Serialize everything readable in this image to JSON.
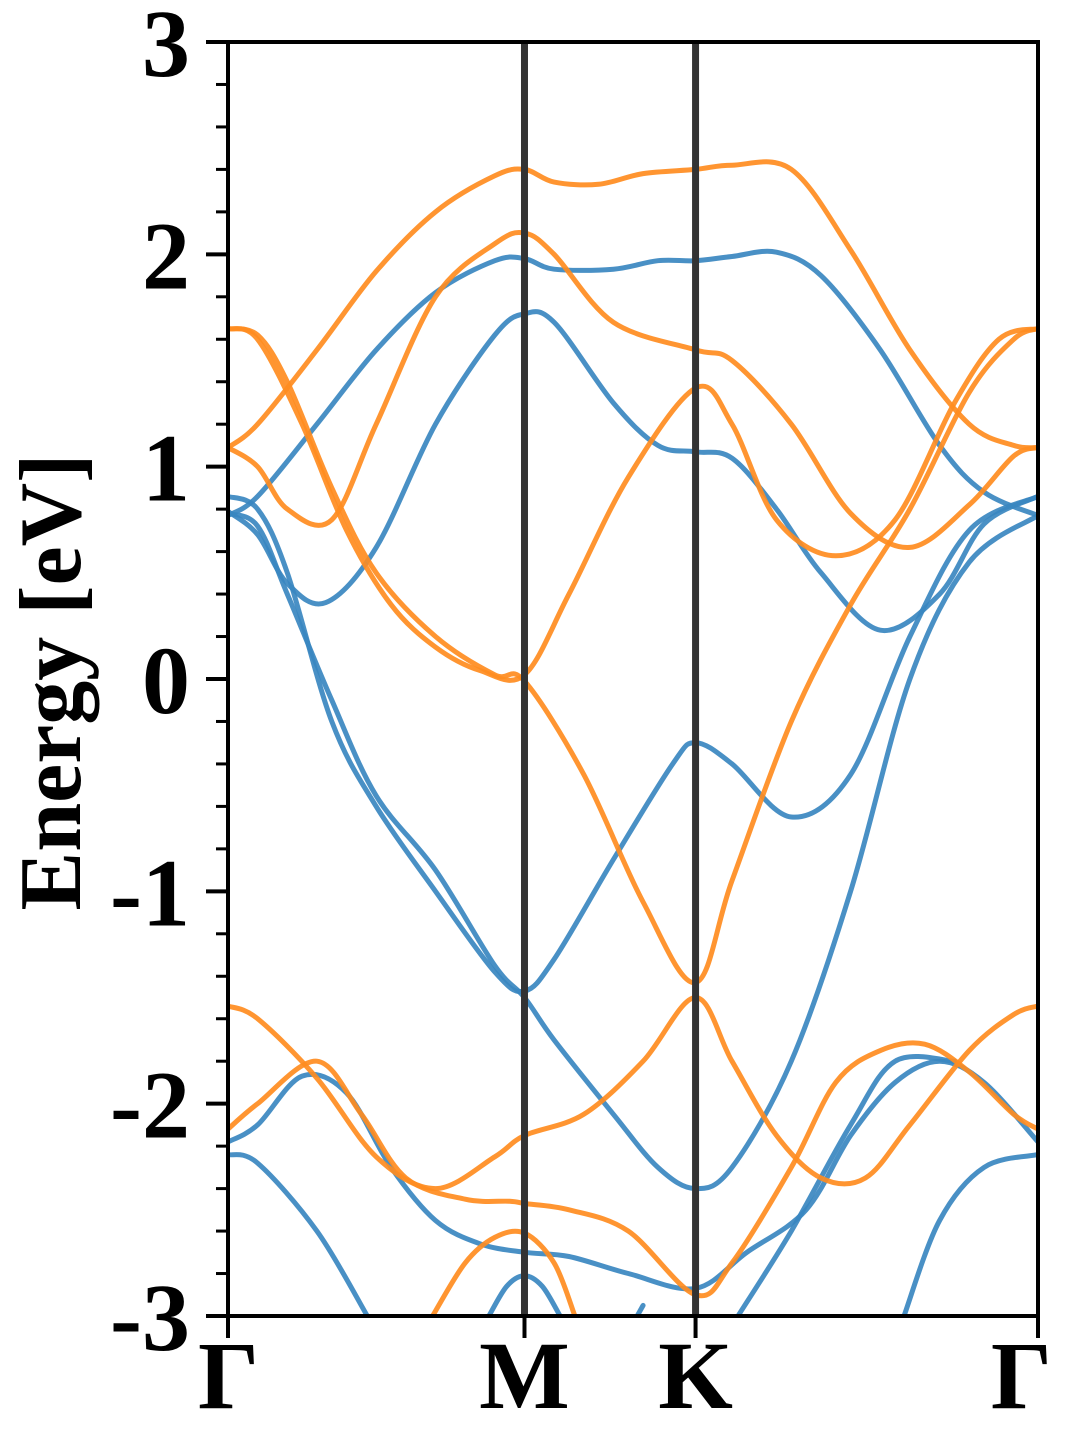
{
  "chart_data": {
    "type": "line",
    "title": "",
    "xlabel": "",
    "ylabel": "Energy [eV]",
    "ylim": [
      -3,
      3
    ],
    "y_ticks": [
      "3",
      "2",
      "1",
      "0",
      "-1",
      "-2",
      "-3"
    ],
    "y_tick_values": [
      3,
      2,
      1,
      0,
      -1,
      -2,
      -3
    ],
    "x_ticks": [
      "Γ",
      "M",
      "K",
      "Γ"
    ],
    "x_tick_positions": [
      0,
      1,
      1.577,
      2.732
    ],
    "k_path_vertical_lines": [
      1,
      1.577
    ],
    "grid": false,
    "colors": {
      "blue": "#3a87c0",
      "orange": "#ff8c1f",
      "frame": "#000000",
      "kline": "#333333"
    },
    "series": [
      {
        "color": "#3a87c0",
        "x": [
          0,
          0.1,
          0.3,
          0.5,
          0.7,
          0.9,
          1.0,
          1.1,
          1.3,
          1.45,
          1.577,
          1.7,
          1.85,
          2.0,
          2.2,
          2.4,
          2.55,
          2.732
        ],
        "y": [
          0.77,
          0.86,
          1.2,
          1.55,
          1.82,
          1.97,
          1.98,
          1.93,
          1.93,
          1.97,
          1.97,
          1.99,
          2.01,
          1.9,
          1.55,
          1.1,
          0.88,
          0.77
        ]
      },
      {
        "color": "#3a87c0",
        "x": [
          0,
          0.1,
          0.2,
          0.33,
          0.5,
          0.7,
          0.9,
          1.0,
          1.1,
          1.3,
          1.45,
          1.577,
          1.7,
          1.85,
          2.0,
          2.2,
          2.4,
          2.55,
          2.732
        ],
        "y": [
          0.79,
          0.68,
          0.45,
          0.36,
          0.62,
          1.2,
          1.62,
          1.72,
          1.68,
          1.3,
          1.1,
          1.07,
          1.04,
          0.8,
          0.5,
          0.23,
          0.4,
          0.73,
          0.86
        ]
      },
      {
        "color": "#3a87c0",
        "x": [
          0,
          0.1,
          0.2,
          0.35,
          0.5,
          0.7,
          0.9,
          1.0,
          1.1,
          1.3,
          1.5,
          1.577,
          1.7,
          1.9,
          2.1,
          2.3,
          2.5,
          2.732
        ],
        "y": [
          0.86,
          0.8,
          0.5,
          -0.2,
          -0.6,
          -1.0,
          -1.38,
          -1.47,
          -1.32,
          -0.85,
          -0.4,
          -0.3,
          -0.4,
          -0.65,
          -0.45,
          0.2,
          0.7,
          0.86
        ]
      },
      {
        "color": "#3a87c0",
        "x": [
          0,
          0.1,
          0.2,
          0.35,
          0.5,
          0.7,
          0.9,
          1.0,
          1.1,
          1.3,
          1.45,
          1.577,
          1.7,
          1.9,
          2.1,
          2.3,
          2.5,
          2.732
        ],
        "y": [
          0.78,
          0.72,
          0.4,
          -0.1,
          -0.55,
          -0.9,
          -1.35,
          -1.5,
          -1.7,
          -2.05,
          -2.3,
          -2.4,
          -2.3,
          -1.8,
          -1.0,
          0.0,
          0.55,
          0.77
        ]
      },
      {
        "color": "#3a87c0",
        "x": [
          0,
          0.1,
          0.25,
          0.4,
          0.55,
          0.7,
          0.85,
          1.0,
          1.15,
          1.35,
          1.577,
          1.75,
          1.95,
          2.1,
          2.25,
          2.4,
          2.55,
          2.732
        ],
        "y": [
          -2.18,
          -2.1,
          -1.87,
          -1.95,
          -2.3,
          -2.55,
          -2.66,
          -2.7,
          -2.72,
          -2.8,
          -2.87,
          -2.7,
          -2.5,
          -2.15,
          -1.9,
          -1.8,
          -1.9,
          -2.18
        ]
      },
      {
        "color": "#3a87c0",
        "x": [
          0,
          0.1,
          0.3,
          0.47
        ],
        "y": [
          -2.24,
          -2.28,
          -2.6,
          -3.0
        ]
      },
      {
        "color": "#3a87c0",
        "x": [
          0.88,
          0.94,
          1.0,
          1.06,
          1.12
        ],
        "y": [
          -3.0,
          -2.86,
          -2.81,
          -2.86,
          -3.0
        ]
      },
      {
        "color": "#3a87c0",
        "x": [
          1.38,
          1.4
        ],
        "y": [
          -3.0,
          -2.95
        ]
      },
      {
        "color": "#3a87c0",
        "x": [
          2.28,
          2.4,
          2.55,
          2.732
        ],
        "y": [
          -3.0,
          -2.55,
          -2.3,
          -2.24
        ]
      },
      {
        "color": "#3a87c0",
        "x": [
          1.72,
          1.9,
          2.1,
          2.25,
          2.45
        ],
        "y": [
          -3.0,
          -2.6,
          -2.1,
          -1.8,
          -1.8
        ]
      },
      {
        "color": "#ff8c1f",
        "x": [
          0,
          0.1,
          0.3,
          0.5,
          0.7,
          0.9,
          1.0,
          1.1,
          1.25,
          1.4,
          1.577,
          1.7,
          1.9,
          2.1,
          2.3,
          2.5,
          2.65,
          2.732
        ],
        "y": [
          1.09,
          1.2,
          1.55,
          1.92,
          2.2,
          2.37,
          2.4,
          2.34,
          2.33,
          2.38,
          2.4,
          2.42,
          2.4,
          2.02,
          1.55,
          1.2,
          1.1,
          1.09
        ]
      },
      {
        "color": "#ff8c1f",
        "x": [
          0,
          0.1,
          0.2,
          0.35,
          0.5,
          0.7,
          0.9,
          1.0,
          1.1,
          1.3,
          1.577,
          1.7,
          1.9,
          2.1,
          2.3,
          2.5,
          2.65,
          2.732
        ],
        "y": [
          1.09,
          1.0,
          0.8,
          0.75,
          1.2,
          1.8,
          2.05,
          2.1,
          2.0,
          1.68,
          1.55,
          1.5,
          1.2,
          0.78,
          0.62,
          0.82,
          1.05,
          1.09
        ]
      },
      {
        "color": "#ff8c1f",
        "x": [
          0,
          0.1,
          0.25,
          0.4,
          0.55,
          0.7,
          0.85,
          1.0,
          1.15,
          1.35,
          1.577,
          1.7,
          1.85,
          2.05,
          2.25,
          2.45,
          2.6,
          2.732
        ],
        "y": [
          1.65,
          1.6,
          1.2,
          0.7,
          0.35,
          0.15,
          0.04,
          0.02,
          0.4,
          0.95,
          1.37,
          1.2,
          0.75,
          0.58,
          0.75,
          1.3,
          1.6,
          1.65
        ]
      },
      {
        "color": "#ff8c1f",
        "x": [
          0,
          0.1,
          0.2,
          0.35,
          0.5,
          0.7,
          0.9,
          1.0,
          1.2,
          1.4,
          1.577,
          1.7,
          1.9,
          2.1,
          2.3,
          2.5,
          2.65,
          2.732
        ],
        "y": [
          1.65,
          1.62,
          1.4,
          0.9,
          0.5,
          0.2,
          0.02,
          -0.01,
          -0.45,
          -1.05,
          -1.43,
          -0.95,
          -0.2,
          0.35,
          0.8,
          1.35,
          1.6,
          1.65
        ]
      },
      {
        "color": "#ff8c1f",
        "x": [
          0,
          0.1,
          0.3,
          0.45,
          0.6,
          0.8,
          0.95,
          1.0,
          1.15,
          1.35,
          1.577,
          1.7,
          1.9,
          2.05,
          2.2,
          2.35,
          2.5,
          2.65,
          2.732
        ],
        "y": [
          -2.12,
          -2.0,
          -1.8,
          -2.05,
          -2.35,
          -2.45,
          -2.46,
          -2.47,
          -2.5,
          -2.6,
          -2.9,
          -2.75,
          -2.3,
          -1.9,
          -1.75,
          -1.72,
          -1.85,
          -2.05,
          -2.12
        ]
      },
      {
        "color": "#ff8c1f",
        "x": [
          0,
          0.1,
          0.3,
          0.5,
          0.7,
          0.9,
          1.0,
          1.2,
          1.4,
          1.577,
          1.7,
          1.85,
          2.0,
          2.15,
          2.3,
          2.5,
          2.65,
          2.732
        ],
        "y": [
          -1.54,
          -1.6,
          -1.88,
          -2.25,
          -2.4,
          -2.25,
          -2.15,
          -2.05,
          -1.8,
          -1.5,
          -1.8,
          -2.15,
          -2.35,
          -2.35,
          -2.1,
          -1.75,
          -1.58,
          -1.54
        ]
      },
      {
        "color": "#ff8c1f",
        "x": [
          0.69,
          0.8,
          0.9,
          1.0,
          1.1,
          1.17
        ],
        "y": [
          -3.0,
          -2.75,
          -2.63,
          -2.61,
          -2.75,
          -3.0
        ]
      }
    ]
  }
}
